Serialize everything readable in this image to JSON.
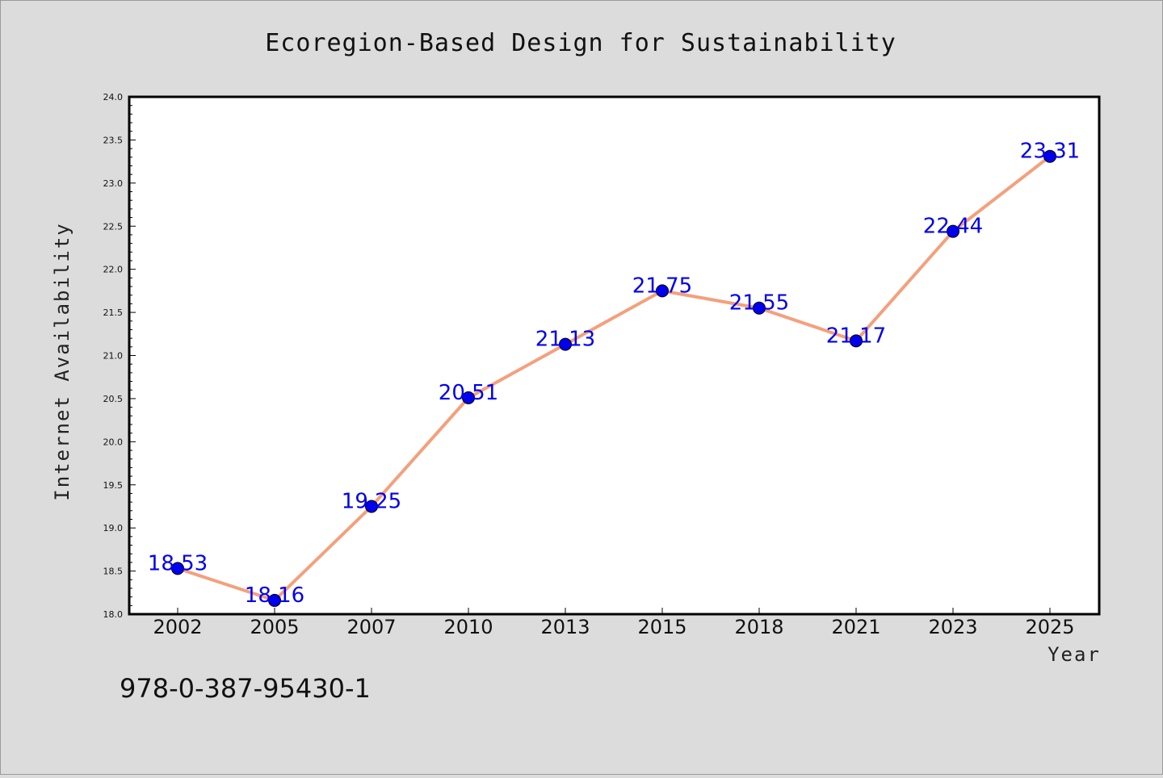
{
  "chart_data": {
    "type": "line",
    "title": "Ecoregion-Based Design for Sustainability",
    "xlabel": "Year",
    "ylabel": "Internet Availability",
    "categories": [
      "2002",
      "2005",
      "2007",
      "2010",
      "2013",
      "2015",
      "2018",
      "2021",
      "2023",
      "2025"
    ],
    "values": [
      18.53,
      18.16,
      19.25,
      20.51,
      21.13,
      21.75,
      21.55,
      21.17,
      22.44,
      23.31
    ],
    "data_labels": [
      "18.53",
      "18.16",
      "19.25",
      "20.51",
      "21.13",
      "21.75",
      "21.55",
      "21.17",
      "22.44",
      "23.31"
    ],
    "yticks": [
      "18.0",
      "18.5",
      "19.0",
      "19.5",
      "20.0",
      "20.5",
      "21.0",
      "21.5",
      "22.0",
      "22.5",
      "23.0",
      "23.5",
      "24.0"
    ],
    "ylim": [
      18.0,
      24.0
    ],
    "grid": false,
    "line_color": "#f4a07c",
    "marker_color": "#0000ee",
    "label_color": "#0000ee"
  },
  "footnote": "978-0-387-95430-1"
}
